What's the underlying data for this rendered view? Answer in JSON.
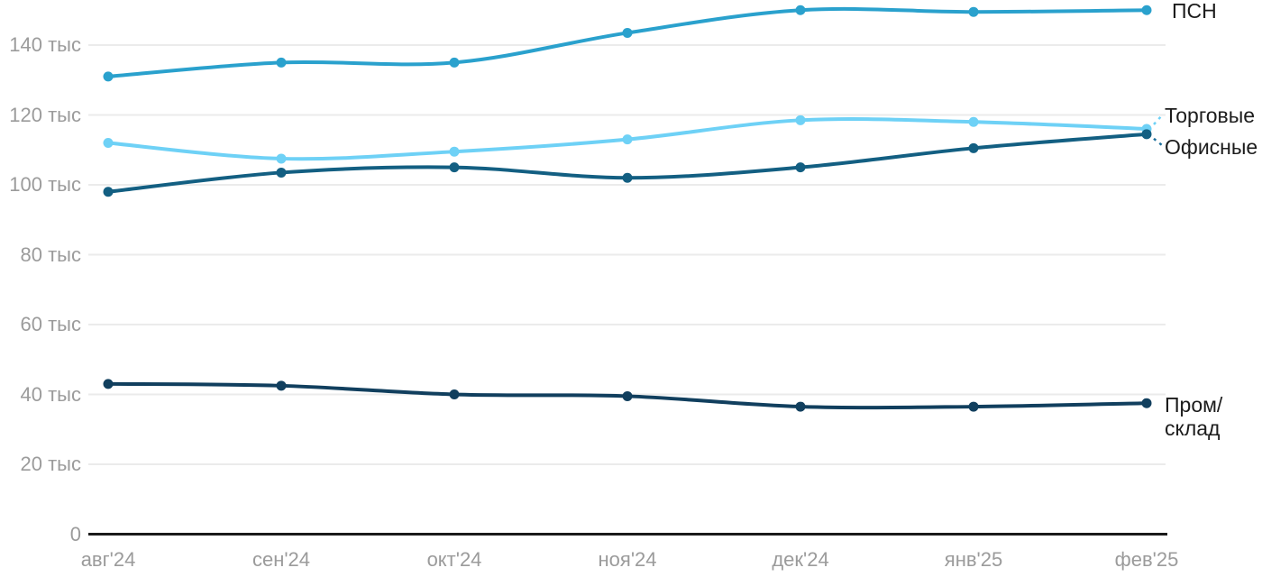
{
  "chart_data": {
    "type": "line",
    "title": "",
    "xlabel": "",
    "ylabel": "тыс",
    "grid": true,
    "legend_position": "right-inline",
    "ylim": [
      0,
      155
    ],
    "categories": [
      "авг'24",
      "сен'24",
      "окт'24",
      "ноя'24",
      "дек'24",
      "янв'25",
      "фев'25"
    ],
    "y_ticks": [
      {
        "value": 0,
        "label": "0"
      },
      {
        "value": 20,
        "label": "20 тыс"
      },
      {
        "value": 40,
        "label": "40 тыс"
      },
      {
        "value": 60,
        "label": "60 тыс"
      },
      {
        "value": 80,
        "label": "80 тыс"
      },
      {
        "value": 100,
        "label": "100 тыс"
      },
      {
        "value": 120,
        "label": "120 тыс"
      },
      {
        "value": 140,
        "label": "140 тыс"
      }
    ],
    "series": [
      {
        "id": "psn",
        "name": "ПСН",
        "label_display": "ПСН",
        "color": "#2aa1cd",
        "values": [
          131,
          135,
          135,
          143.5,
          150,
          149.5,
          150
        ]
      },
      {
        "id": "torgovye",
        "name": "Торговые",
        "label_display": "Торговые",
        "color": "#6ed1f6",
        "values": [
          112,
          107.5,
          109.5,
          113,
          118.5,
          118,
          116
        ]
      },
      {
        "id": "ofisnye",
        "name": "Офисные",
        "label_display": "Офисные",
        "color": "#135f82",
        "values": [
          98,
          103.5,
          105,
          102,
          105,
          110.5,
          114.5
        ]
      },
      {
        "id": "prom-sklad",
        "name": "Пром/склад",
        "label_display": "Пром/\nсклад",
        "color": "#113f5e",
        "values": [
          43,
          42.5,
          40,
          39.5,
          36.5,
          36.5,
          37.5
        ]
      }
    ],
    "colors": {
      "axis_line": "#1a1a1a",
      "gridline": "#ebebeb",
      "tick_text": "#9b9b9b",
      "series_label_text": "#1c1c1c"
    }
  }
}
